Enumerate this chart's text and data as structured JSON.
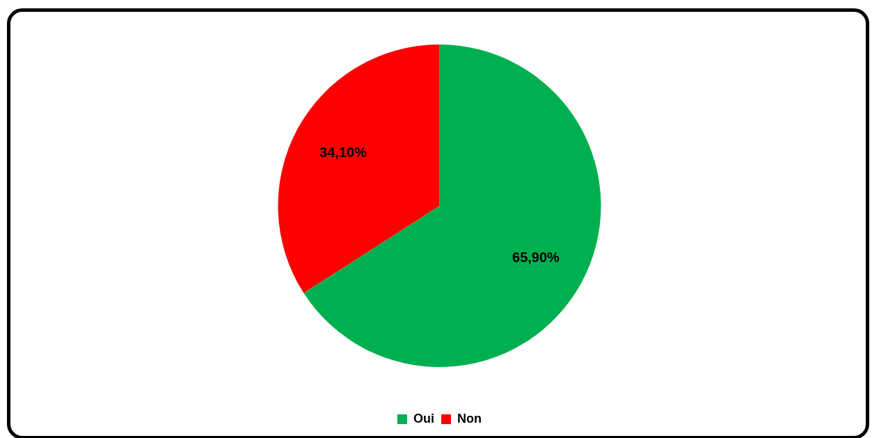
{
  "chart_data": {
    "type": "pie",
    "categories": [
      "Oui",
      "Non"
    ],
    "values": [
      65.9,
      34.1
    ],
    "colors": [
      "#00b050",
      "#ff0000"
    ],
    "value_labels": [
      "65,90%",
      "34,10%"
    ],
    "legend": "bottom"
  }
}
